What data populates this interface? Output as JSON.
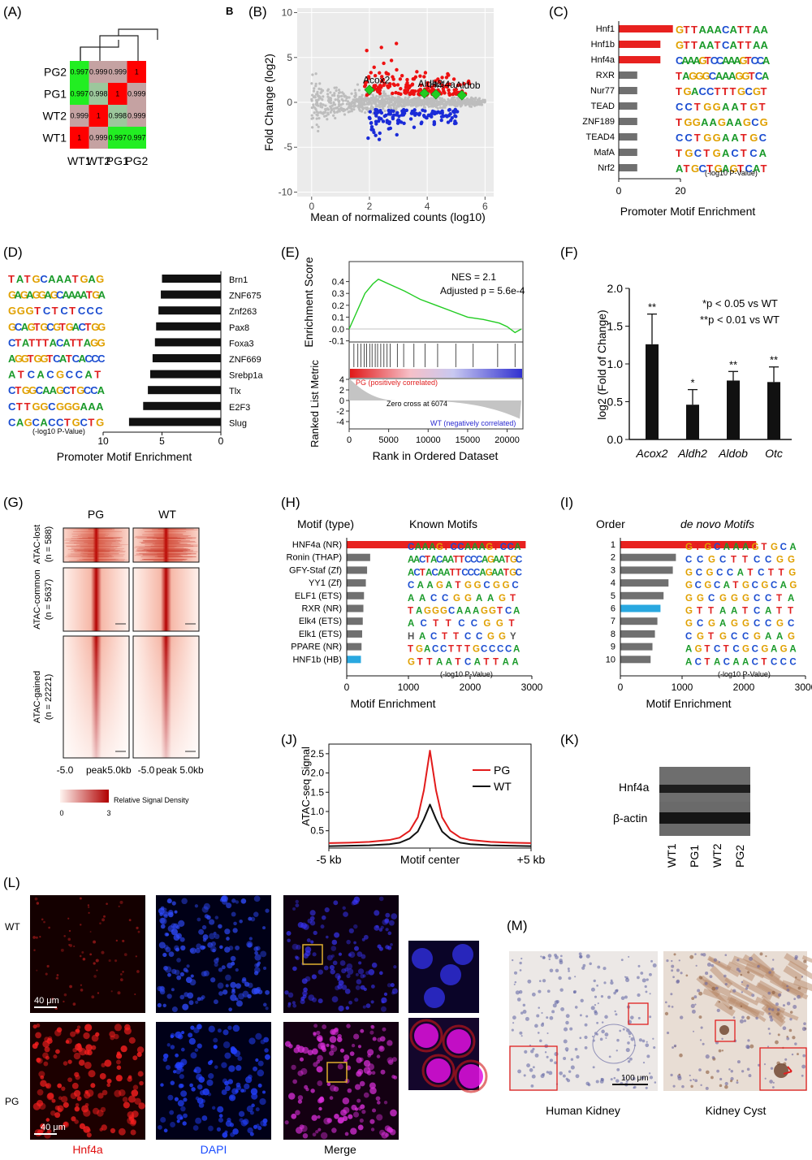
{
  "panels": {
    "A": "(A)",
    "B_small": "B",
    "B": "(B)",
    "C": "(C)",
    "D": "(D)",
    "E": "(E)",
    "F": "(F)",
    "G": "(G)",
    "H": "(H)",
    "I": "(I)",
    "J": "(J)",
    "K": "(K)",
    "L": "(L)",
    "M": "(M)"
  },
  "chart_data": [
    {
      "id": "A",
      "type": "heatmap",
      "rows": [
        "PG2",
        "PG1",
        "WT2",
        "WT1"
      ],
      "cols": [
        "WT1",
        "WT2",
        "PG1",
        "PG2"
      ],
      "values": [
        [
          "0.997",
          "0.999",
          "0.999",
          "1"
        ],
        [
          "0.997",
          "0.998",
          "1",
          "0.999"
        ],
        [
          "0.999",
          "1",
          "0.998",
          "0.999"
        ],
        [
          "1",
          "0.999",
          "0.997",
          "0.997"
        ]
      ],
      "colors": {
        "one": "#ff0000",
        "high": "#c5a2a2",
        "mid": "#9cc79c",
        "low": "#22ee22"
      }
    },
    {
      "id": "B",
      "type": "scatter",
      "xlabel": "Mean of normalized counts (log10)",
      "ylabel": "Fold Change (log2)",
      "xticks": [
        "0",
        "2",
        "4",
        "6"
      ],
      "yticks": [
        "-10",
        "-5",
        "0",
        "5",
        "10"
      ],
      "xlim": [
        -0.5,
        6.3
      ],
      "ylim": [
        -10.5,
        10.5
      ],
      "highlight": [
        {
          "label": "Acox2",
          "x": 2.0,
          "y": 1.4
        },
        {
          "label": "Aldh2",
          "x": 3.9,
          "y": 1.0
        },
        {
          "label": "Hnf4a",
          "x": 4.3,
          "y": 0.9
        },
        {
          "label": "Aldob",
          "x": 5.2,
          "y": 0.8
        }
      ],
      "colors": {
        "up": "#ee1111",
        "down": "#1a2bd8",
        "ns": "#bdbdbd",
        "highlight": "#22cc22"
      }
    },
    {
      "id": "C",
      "type": "bar",
      "xlabel": "Promoter Motif Enrichment",
      "xticks": [
        "0",
        "20"
      ],
      "note": "(-log10 P-Value)",
      "categories": [
        "Hnf1",
        "Hnf1b",
        "Hnf4a",
        "RXR",
        "Nur77",
        "TEAD",
        "ZNF189",
        "TEAD4",
        "MafA",
        "Nrf2"
      ],
      "values": [
        13,
        10,
        10,
        6,
        6,
        6,
        6,
        6,
        6,
        6
      ],
      "motifs": [
        "GTTAAACATTAA",
        "GTTAATCATTAA",
        "CAAAGTCCAAAGTCCA",
        "TAGGGCAAAGGTCA",
        "TGACCTTTGCGT",
        "CCTGGAATGT",
        "TGGAAGAAGCG",
        "CCTGGAATGC",
        "TGCTGACTCA",
        "ATGCTGAGTCAT"
      ],
      "colors": [
        "#e8211f",
        "#e8211f",
        "#e8211f",
        "#707070",
        "#707070",
        "#707070",
        "#707070",
        "#707070",
        "#707070",
        "#707070"
      ]
    },
    {
      "id": "D",
      "type": "bar",
      "xlabel": "Promoter Motif Enrichment",
      "xticks": [
        "10",
        "5",
        "0"
      ],
      "note": "(-log10 P-Value)",
      "categories": [
        "Brn1",
        "ZNF675",
        "Znf263",
        "Pax8",
        "Foxa3",
        "ZNF669",
        "Srebp1a",
        "Tlx",
        "E2F3",
        "Slug"
      ],
      "values": [
        5.0,
        5.1,
        5.3,
        5.5,
        5.6,
        5.8,
        6.0,
        6.2,
        6.6,
        7.8
      ],
      "motifs": [
        "TATGCAAATGAG",
        "GAGAGGAGCAAAATGA",
        "GGGTCTCTCCC",
        "GCAGTGCGTGACTGG",
        "CTATTTACATTAGG",
        "AGGTGGTCATCACCC",
        "ATCACGCCAT",
        "CTGGCAAGCTGCCA",
        "CTTGGCGGGAAA",
        "CAGCACCTGCTG"
      ]
    },
    {
      "id": "E",
      "type": "line",
      "ylabel": "Enrichment Score",
      "yticks": [
        "0.4",
        "0.3",
        "0.2",
        "0.1",
        "0.0",
        "-0.1"
      ],
      "ylabel2": "Ranked List Metric",
      "yticks2": [
        "4",
        "2",
        "0",
        "-2",
        "-4"
      ],
      "xlabel": "Rank in Ordered Dataset",
      "xticks": [
        "0",
        "5000",
        "10000",
        "15000",
        "20000"
      ],
      "nes": "NES = 2.1",
      "padj": "Adjusted p = 5.6e-4",
      "pg_label": "PG (positively correlated)",
      "zero_cross": "Zero cross at 6074",
      "wt_label": "WT (negatively correlated)",
      "x": [
        0,
        1000,
        2000,
        3000,
        3700,
        5000,
        7000,
        9000,
        11000,
        13000,
        15000,
        17000,
        19000,
        20000,
        21000,
        21800
      ],
      "y": [
        0.0,
        0.15,
        0.3,
        0.38,
        0.42,
        0.38,
        0.32,
        0.25,
        0.2,
        0.15,
        0.1,
        0.08,
        0.05,
        0.02,
        -0.03,
        0.0
      ],
      "hits": [
        600,
        1100,
        1500,
        1900,
        2200,
        2600,
        2900,
        3300,
        3600,
        4000,
        4400,
        4800,
        5200,
        6100,
        6900,
        8200,
        9600,
        11200,
        13500,
        15700,
        18800,
        21000
      ],
      "colors": {
        "line": "#22cc22",
        "pg": "#e02020",
        "wt": "#2a2ad0",
        "metric": "#c4c4c4"
      }
    },
    {
      "id": "F",
      "type": "bar",
      "ylabel": "log2 (Fold of Change)",
      "yticks": [
        "0.0",
        "0.5",
        "1.0",
        "1.5",
        "2.0"
      ],
      "ylim": [
        0,
        2.0
      ],
      "categories": [
        "Acox2",
        "Aldh2",
        "Aldob",
        "Otc"
      ],
      "values": [
        1.26,
        0.46,
        0.78,
        0.76
      ],
      "errors": [
        0.4,
        0.2,
        0.12,
        0.2
      ],
      "sig": [
        "**",
        "*",
        "**",
        "**"
      ],
      "legend": [
        "*p < 0.05 vs WT",
        "**p < 0.01 vs WT"
      ]
    },
    {
      "id": "G",
      "type": "heatmap",
      "cols": [
        "PG",
        "WT"
      ],
      "groups": [
        "ATAC-lost",
        "(n = 588)",
        "ATAC-common",
        "(n = 5637)",
        "ATAC-gained",
        "(n = 22221)"
      ],
      "xticks": [
        "-5.0",
        "peak",
        "5.0kb",
        "-5.0",
        "peak",
        "5.0kb"
      ],
      "scale_label": "Relative Signal Density",
      "scale_min": "0",
      "scale_max": "3",
      "colors": {
        "low": "#fff2ee",
        "high": "#b40000"
      }
    },
    {
      "id": "H",
      "type": "bar",
      "header": "Motif (type)",
      "header2": "Known Motifs",
      "xlabel": "Motif Enrichment",
      "xticks": [
        "0",
        "1000",
        "2000",
        "3000"
      ],
      "note": "(-log10 P-Value)",
      "categories": [
        "HNF4a (NR)",
        "Ronin (THAP)",
        "GFY-Staf (Zf)",
        "YY1 (Zf)",
        "ELF1 (ETS)",
        "RXR (NR)",
        "Elk4 (ETS)",
        "Elk1 (ETS)",
        "PPARE (NR)",
        "HNF1b (HB)"
      ],
      "values": [
        2900,
        380,
        330,
        310,
        280,
        270,
        260,
        250,
        240,
        230
      ],
      "motifs": [
        "CAAAGTCCAAAGTCCA",
        "AACTACAATTCCCAGAATGC",
        "ACTACAATTCCCAGAATGC",
        "CAAGATGGCGGC",
        "AACCGGAAGT",
        "TAGGGCAAAGGTCA",
        "ACTTCCGGT",
        "HACTTCCGGY",
        "TGACCTTTGCCCCA",
        "GTTAATCATTAA"
      ],
      "colors": [
        "#e8211f",
        "#707070",
        "#707070",
        "#707070",
        "#707070",
        "#707070",
        "#707070",
        "#707070",
        "#707070",
        "#29a8e0"
      ]
    },
    {
      "id": "I",
      "type": "bar",
      "header": "Order",
      "header2": "de novo Motifs",
      "xlabel": "Motif Enrichment",
      "xticks": [
        "0",
        "1000",
        "2000",
        "3000"
      ],
      "note": "(-log10 P-Value)",
      "categories": [
        "1",
        "2",
        "3",
        "4",
        "5",
        "6",
        "7",
        "8",
        "9",
        "10"
      ],
      "values": [
        2200,
        900,
        850,
        780,
        700,
        650,
        600,
        560,
        520,
        490
      ],
      "motifs": [
        "GTGCAAAGTGCA",
        "CCGCTTCCGG",
        "GCGCCATCTTG",
        "GCGCATGCGCAG",
        "GGCGGGCCTA",
        "GTTAATCATT",
        "GCGAGGCCGC",
        "CGTGCCGAAG",
        "AGTCTCGCGAGA",
        "ACTACAACTCCC"
      ],
      "colors": [
        "#e8211f",
        "#707070",
        "#707070",
        "#707070",
        "#707070",
        "#29a8e0",
        "#707070",
        "#707070",
        "#707070",
        "#707070"
      ]
    },
    {
      "id": "J",
      "type": "line",
      "ylabel": "ATAC-seq Signal",
      "yticks": [
        "0.5",
        "1.0",
        "1.5",
        "2.0",
        "2.5"
      ],
      "ylim": [
        0.05,
        2.75
      ],
      "xticks": [
        "-5 kb",
        "Motif center",
        "+5 kb"
      ],
      "xlim": [
        -5,
        5
      ],
      "series": [
        {
          "name": "PG",
          "color": "#e21b1b",
          "x": [
            -5,
            -4,
            -3,
            -2,
            -1.5,
            -1,
            -0.6,
            -0.3,
            0,
            0.3,
            0.6,
            1,
            1.5,
            2,
            3,
            4,
            5
          ],
          "y": [
            0.18,
            0.19,
            0.21,
            0.26,
            0.32,
            0.5,
            0.85,
            1.55,
            2.58,
            1.55,
            0.85,
            0.5,
            0.32,
            0.26,
            0.21,
            0.19,
            0.18
          ]
        },
        {
          "name": "WT",
          "color": "#111111",
          "x": [
            -5,
            -4,
            -3,
            -2,
            -1.5,
            -1,
            -0.6,
            -0.3,
            0,
            0.3,
            0.6,
            1,
            1.5,
            2,
            3,
            4,
            5
          ],
          "y": [
            0.1,
            0.11,
            0.12,
            0.15,
            0.19,
            0.3,
            0.48,
            0.8,
            1.18,
            0.8,
            0.48,
            0.3,
            0.19,
            0.15,
            0.12,
            0.11,
            0.1
          ]
        }
      ]
    }
  ],
  "panel_K": {
    "rows": [
      "Hnf4a",
      "β-actin"
    ],
    "lanes": [
      "WT1",
      "PG1",
      "WT2",
      "PG2"
    ]
  },
  "panel_L": {
    "rows": [
      "WT",
      "PG"
    ],
    "scale": "40 μm",
    "channels": [
      "Hnf4a",
      "DAPI",
      "Merge"
    ],
    "channel_colors": [
      "#e01010",
      "#1a4cff",
      "#111111"
    ]
  },
  "panel_M": {
    "labels": [
      "Human Kidney",
      "Kidney Cyst"
    ],
    "scale": "100 μm"
  }
}
